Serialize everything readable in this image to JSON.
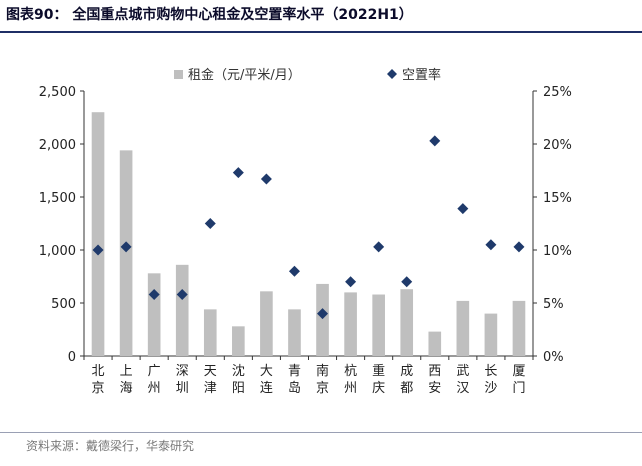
{
  "title": "图表90：  全国重点城市购物中心租金及空置率水平（2022H1）",
  "source": "资料来源：戴德梁行，华泰研究",
  "colors": {
    "bar": "#bfbfbf",
    "marker": "#1f3a6b",
    "axis": "#333333"
  },
  "chart_data": {
    "type": "bar",
    "categories": [
      "北京",
      "上海",
      "广州",
      "深圳",
      "天津",
      "沈阳",
      "大连",
      "青岛",
      "南京",
      "杭州",
      "重庆",
      "成都",
      "西安",
      "武汉",
      "长沙",
      "厦门"
    ],
    "series": [
      {
        "name": "租金（元/平米/月）",
        "type": "bar",
        "axis": "left",
        "values": [
          2300,
          1940,
          780,
          860,
          440,
          280,
          610,
          440,
          680,
          600,
          580,
          630,
          230,
          520,
          400,
          520
        ]
      },
      {
        "name": "空置率",
        "type": "scatter",
        "axis": "right",
        "marker": "diamond",
        "values": [
          10.0,
          10.3,
          5.8,
          5.8,
          12.5,
          17.3,
          16.7,
          8.0,
          4.0,
          7.0,
          10.3,
          7.0,
          20.3,
          13.9,
          10.5,
          10.3
        ]
      }
    ],
    "yleft": {
      "lim": [
        0,
        2500
      ],
      "ticks": [
        "0",
        "500",
        "1,000",
        "1,500",
        "2,000",
        "2,500"
      ]
    },
    "yright": {
      "lim": [
        0,
        25
      ],
      "ticks": [
        "0%",
        "5%",
        "10%",
        "15%",
        "20%",
        "25%"
      ]
    },
    "legend": [
      "租金（元/平米/月）",
      "空置率"
    ],
    "legend_position": "top-center",
    "grid": false
  }
}
